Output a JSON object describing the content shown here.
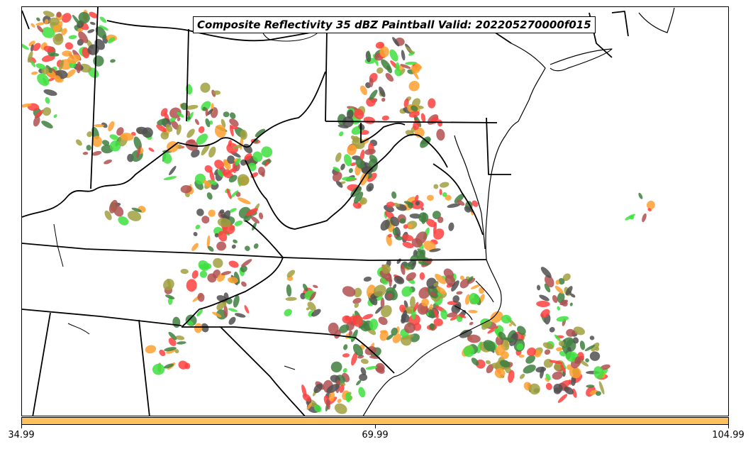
{
  "title": "Composite Reflectivity 35 dBZ Paintball Valid: 202205270000f015",
  "colorbar": {
    "color": "#ffc060",
    "ticks": [
      "34.99",
      "69.99",
      "104.99"
    ]
  },
  "palette": [
    "#ff4040",
    "#b05050",
    "#40e040",
    "#ffa030",
    "#a0a040",
    "#408040",
    "#505050"
  ],
  "chart_data": {
    "type": "map",
    "region": "Mid-Atlantic / Ohio Valley / Carolinas",
    "layers": [
      "state borders",
      "coastline",
      "paintball reflectivity >= 35 dBZ"
    ]
  }
}
